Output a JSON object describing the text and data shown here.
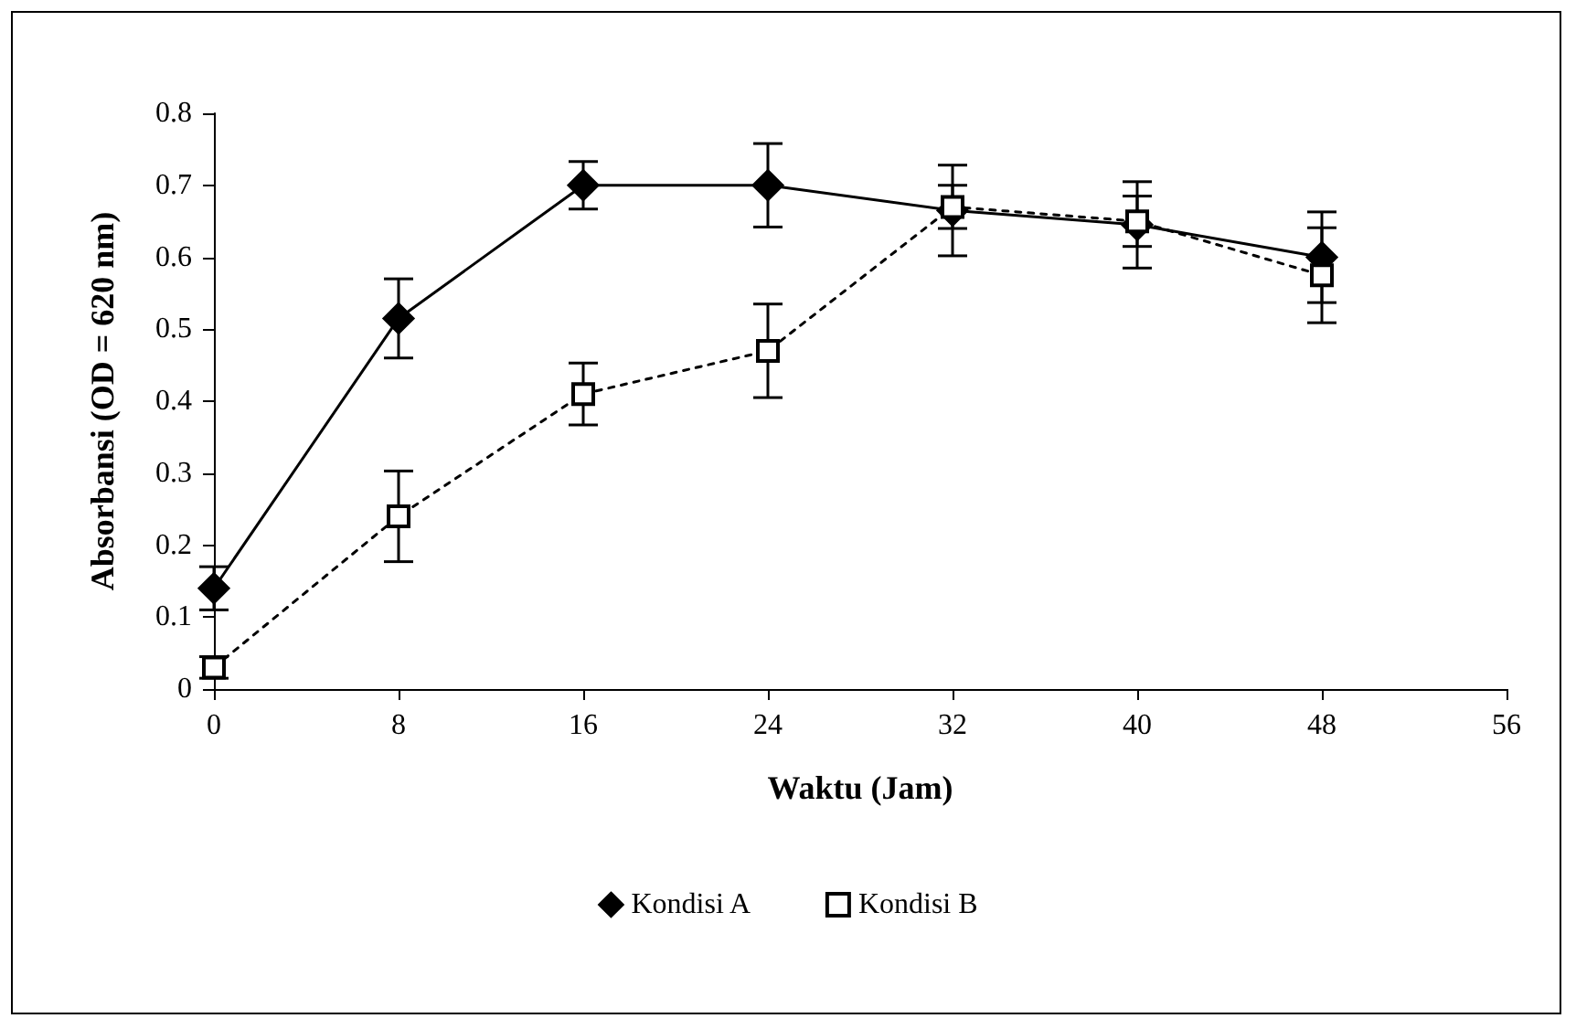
{
  "chart_data": {
    "type": "line",
    "xlabel": "Waktu (Jam)",
    "ylabel": "Absorbansi (OD = 620 nm)",
    "x": [
      0,
      8,
      16,
      24,
      32,
      40,
      48
    ],
    "series": [
      {
        "name": "Kondisi A",
        "color": "#000000",
        "marker": "diamond",
        "line_style": "solid",
        "values": [
          0.14,
          0.515,
          0.7,
          0.7,
          0.665,
          0.645,
          0.6
        ],
        "errors": [
          0.03,
          0.055,
          0.033,
          0.058,
          0.063,
          0.06,
          0.063
        ]
      },
      {
        "name": "Kondisi B",
        "color": "#000000",
        "marker": "square",
        "line_style": "dotted",
        "values": [
          0.03,
          0.24,
          0.41,
          0.47,
          0.67,
          0.65,
          0.575
        ],
        "errors": [
          0.015,
          0.063,
          0.043,
          0.065,
          0.03,
          0.035,
          0.066
        ]
      }
    ],
    "xlim": [
      0,
      56
    ],
    "xticks": [
      0,
      8,
      16,
      24,
      32,
      40,
      48,
      56
    ],
    "ylim": [
      0,
      0.8
    ],
    "yticks": [
      0,
      0.1,
      0.2,
      0.3,
      0.4,
      0.5,
      0.6,
      0.7,
      0.8
    ],
    "grid": false,
    "legend": "bottom"
  }
}
